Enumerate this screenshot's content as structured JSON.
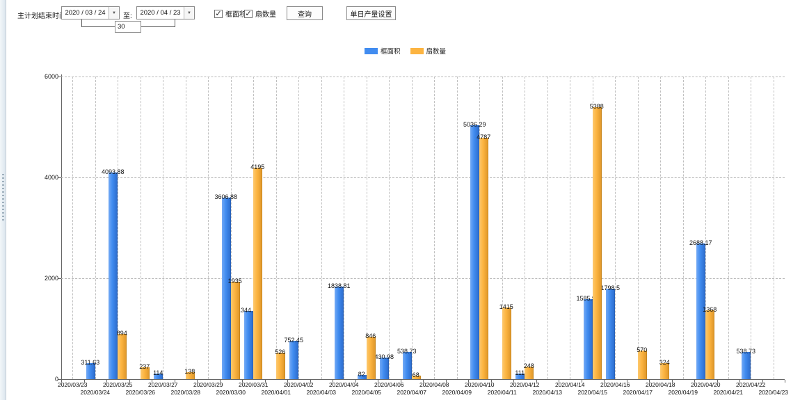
{
  "toolbar": {
    "title_label": "主计划结束时间:",
    "start_date": "2020 / 03 / 24",
    "to_label": "至:",
    "end_date": "2020 / 04 / 23",
    "interval_days": "30",
    "frame_area_checkbox": "框面积",
    "fan_count_checkbox": "扇数量",
    "frame_area_checked": true,
    "fan_count_checked": true,
    "query_button": "查询",
    "daily_output_button": "单日产量设置"
  },
  "icons": {
    "check_glyph": "✓",
    "dropdown_glyph": "▼"
  },
  "legend": {
    "items": [
      {
        "label": "框面积",
        "color": "#418CF0"
      },
      {
        "label": "扇数量",
        "color": "#FCB441"
      }
    ]
  },
  "chart_data": {
    "type": "bar",
    "title": "",
    "xlabel": "",
    "ylabel": "",
    "ylim": [
      0,
      6000
    ],
    "yticks": [
      0,
      2000,
      4000,
      6000
    ],
    "grid": true,
    "legend_position": "top",
    "categories": [
      "2020/03/23",
      "2020/03/24",
      "2020/03/25",
      "2020/03/26",
      "2020/03/27",
      "2020/03/28",
      "2020/03/29",
      "2020/03/30",
      "2020/03/31",
      "2020/04/01",
      "2020/04/02",
      "2020/04/03",
      "2020/04/04",
      "2020/04/05",
      "2020/04/06",
      "2020/04/07",
      "2020/04/08",
      "2020/04/09",
      "2020/04/10",
      "2020/04/11",
      "2020/04/12",
      "2020/04/13",
      "2020/04/14",
      "2020/04/15",
      "2020/04/16",
      "2020/04/17",
      "2020/04/18",
      "2020/04/19",
      "2020/04/20",
      "2020/04/21",
      "2020/04/22",
      "2020/04/23"
    ],
    "series": [
      {
        "name": "框面积",
        "key": "frame-area",
        "color": "#418CF0",
        "values": [
          null,
          311.63,
          4093.88,
          null,
          114,
          null,
          null,
          3606.88,
          1344.95,
          null,
          752.45,
          null,
          1838.81,
          82,
          430.98,
          538.73,
          null,
          null,
          5036.29,
          null,
          111,
          null,
          null,
          1585.96,
          1798.5,
          null,
          null,
          null,
          2688.17,
          null,
          538.73,
          null
        ]
      },
      {
        "name": "扇数量",
        "key": "fan-count",
        "color": "#FCB441",
        "values": [
          null,
          null,
          894,
          237,
          null,
          138,
          null,
          1935,
          4195,
          526,
          null,
          null,
          null,
          846,
          null,
          68,
          null,
          null,
          4787,
          1415,
          248,
          null,
          null,
          5388,
          null,
          570,
          324,
          null,
          1368,
          null,
          null,
          null
        ]
      }
    ]
  }
}
